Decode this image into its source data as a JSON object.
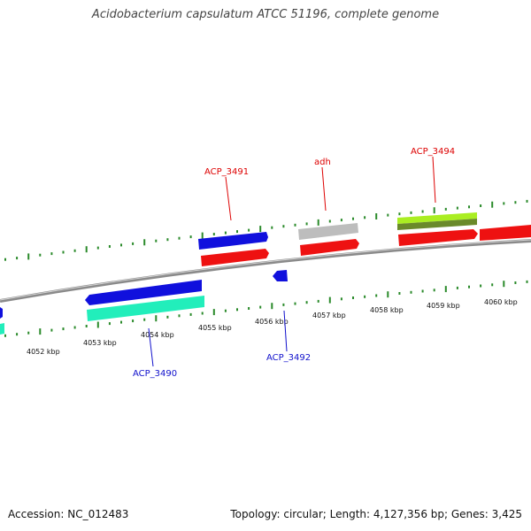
{
  "title": "Acidobacterium capsulatum ATCC 51196, complete genome",
  "footer": {
    "accession": "Accession: NC_012483",
    "topology": "Topology: circular; Length: 4,127,356 bp; Genes: 3,425"
  },
  "colors": {
    "backbone": "#8a8a8a",
    "tick": "#2a8a2a",
    "label_top": "#dd0000",
    "label_bottom": "#1010cc",
    "blue": "#1010dd",
    "red": "#ee1111",
    "teal": "#22eebb",
    "gray": "#bdbdbd",
    "lime": "#aaee22",
    "olive": "#6a8a2a"
  },
  "kbp_labels": [
    "4052 kbp",
    "4053 kbp",
    "4054 kbp",
    "4055 kbp",
    "4056 kbp",
    "4057 kbp",
    "4058 kbp",
    "4059 kbp",
    "4060 kbp"
  ],
  "gene_labels": [
    {
      "text": "ACP_3491",
      "strand": "top"
    },
    {
      "text": "adh",
      "strand": "top"
    },
    {
      "text": "ACP_3494",
      "strand": "top"
    },
    {
      "text": "ACP_3490",
      "strand": "bottom"
    },
    {
      "text": "ACP_3492",
      "strand": "bottom"
    }
  ]
}
